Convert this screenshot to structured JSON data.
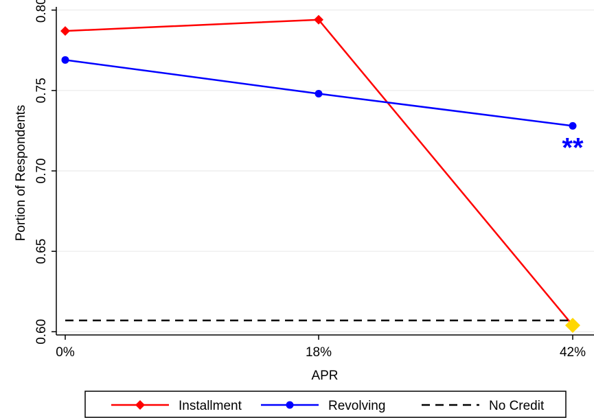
{
  "chart_data": {
    "type": "line",
    "categories": [
      "0%",
      "18%",
      "42%"
    ],
    "xlabel": "APR",
    "ylabel": "Portion of Respondents",
    "ylim": [
      0.598,
      0.802
    ],
    "yticks": [
      0.6,
      0.65,
      0.7,
      0.75,
      0.8
    ],
    "ytick_labels": [
      "0.60",
      "0.65",
      "0.70",
      "0.75",
      "0.80"
    ],
    "grid": true,
    "legend_position": "bottom",
    "series": [
      {
        "name": "Installment",
        "values": [
          0.787,
          0.794,
          0.604
        ],
        "color": "#ff0000",
        "marker": "diamond",
        "highlight_last_color": "#ffd700"
      },
      {
        "name": "Revolving",
        "values": [
          0.769,
          0.748,
          0.728
        ],
        "color": "#0000ff",
        "marker": "circle"
      },
      {
        "name": "No Credit",
        "reference_value": 0.607,
        "color": "#000000",
        "style": "dashed"
      }
    ],
    "annotations": [
      {
        "text": "**",
        "color": "#0000ff",
        "category": "42%",
        "near_series": "Revolving"
      }
    ]
  }
}
